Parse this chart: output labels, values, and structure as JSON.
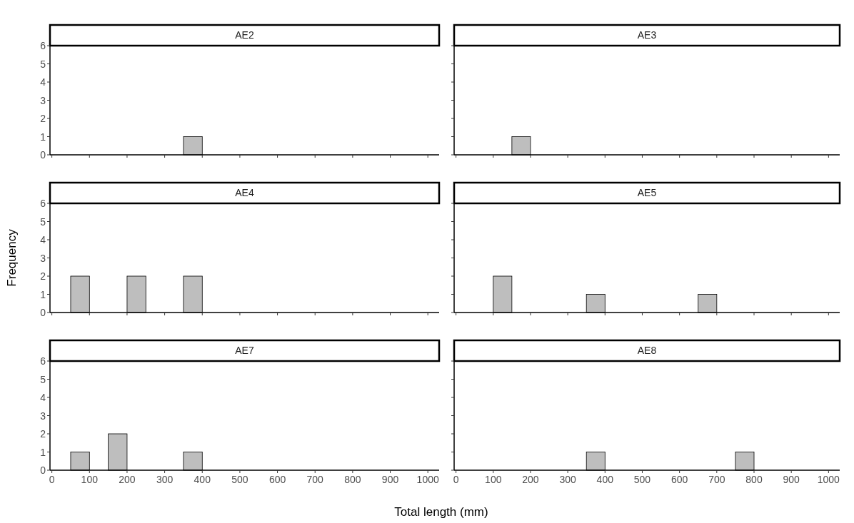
{
  "chart_data": [
    {
      "type": "histogram",
      "title": "AE2",
      "bins": [
        0,
        50,
        100,
        150,
        200,
        250,
        300,
        350,
        400,
        450,
        500,
        550,
        600,
        650,
        700,
        750,
        800,
        850,
        900,
        950,
        1000
      ],
      "values": [
        0,
        0,
        0,
        0,
        0,
        0,
        0,
        1,
        0,
        0,
        0,
        0,
        0,
        0,
        0,
        0,
        0,
        0,
        0,
        0
      ],
      "color": "#bebebe",
      "xlim": [
        -5,
        1030
      ],
      "ylim": [
        0,
        6
      ],
      "xticks": [
        0,
        100,
        200,
        300,
        400,
        500,
        600,
        700,
        800,
        900,
        1000
      ],
      "yticks": [
        0,
        1,
        2,
        3,
        4,
        5,
        6
      ],
      "tick_labels": "y"
    },
    {
      "type": "histogram",
      "title": "AE3",
      "bins": [
        0,
        50,
        100,
        150,
        200,
        250,
        300,
        350,
        400,
        450,
        500,
        550,
        600,
        650,
        700,
        750,
        800,
        850,
        900,
        950,
        1000
      ],
      "values": [
        0,
        0,
        0,
        1,
        0,
        0,
        0,
        0,
        0,
        0,
        0,
        0,
        0,
        0,
        0,
        0,
        0,
        0,
        0,
        0
      ],
      "color": "#bebebe",
      "xlim": [
        -5,
        1030
      ],
      "ylim": [
        0,
        6
      ],
      "xticks": [
        0,
        100,
        200,
        300,
        400,
        500,
        600,
        700,
        800,
        900,
        1000
      ],
      "yticks": [
        0,
        1,
        2,
        3,
        4,
        5,
        6
      ],
      "tick_labels": false
    },
    {
      "type": "histogram",
      "title": "AE4",
      "ylabel": "Frequency",
      "bins": [
        0,
        50,
        100,
        150,
        200,
        250,
        300,
        350,
        400,
        450,
        500,
        550,
        600,
        650,
        700,
        750,
        800,
        850,
        900,
        950,
        1000
      ],
      "values": [
        0,
        2,
        0,
        0,
        2,
        0,
        0,
        2,
        0,
        0,
        0,
        0,
        0,
        0,
        0,
        0,
        0,
        0,
        0,
        0
      ],
      "color": "#bebebe",
      "xlim": [
        -5,
        1030
      ],
      "ylim": [
        0,
        6
      ],
      "xticks": [
        0,
        100,
        200,
        300,
        400,
        500,
        600,
        700,
        800,
        900,
        1000
      ],
      "yticks": [
        0,
        1,
        2,
        3,
        4,
        5,
        6
      ],
      "tick_labels": "y"
    },
    {
      "type": "histogram",
      "title": "AE5",
      "bins": [
        0,
        50,
        100,
        150,
        200,
        250,
        300,
        350,
        400,
        450,
        500,
        550,
        600,
        650,
        700,
        750,
        800,
        850,
        900,
        950,
        1000
      ],
      "values": [
        0,
        0,
        2,
        0,
        0,
        0,
        0,
        1,
        0,
        0,
        0,
        0,
        0,
        1,
        0,
        0,
        0,
        0,
        0,
        0
      ],
      "color": "#bebebe",
      "xlim": [
        -5,
        1030
      ],
      "ylim": [
        0,
        6
      ],
      "xticks": [
        0,
        100,
        200,
        300,
        400,
        500,
        600,
        700,
        800,
        900,
        1000
      ],
      "yticks": [
        0,
        1,
        2,
        3,
        4,
        5,
        6
      ],
      "tick_labels": false
    },
    {
      "type": "histogram",
      "title": "AE7",
      "xlabel": "Total length (mm)",
      "bins": [
        0,
        50,
        100,
        150,
        200,
        250,
        300,
        350,
        400,
        450,
        500,
        550,
        600,
        650,
        700,
        750,
        800,
        850,
        900,
        950,
        1000
      ],
      "values": [
        0,
        1,
        0,
        2,
        0,
        0,
        0,
        1,
        0,
        0,
        0,
        0,
        0,
        0,
        0,
        0,
        0,
        0,
        0,
        0
      ],
      "color": "#bebebe",
      "xlim": [
        -5,
        1030
      ],
      "ylim": [
        0,
        6
      ],
      "xticks": [
        0,
        100,
        200,
        300,
        400,
        500,
        600,
        700,
        800,
        900,
        1000
      ],
      "yticks": [
        0,
        1,
        2,
        3,
        4,
        5,
        6
      ]
    },
    {
      "type": "histogram",
      "title": "AE8",
      "bins": [
        0,
        50,
        100,
        150,
        200,
        250,
        300,
        350,
        400,
        450,
        500,
        550,
        600,
        650,
        700,
        750,
        800,
        850,
        900,
        950,
        1000
      ],
      "values": [
        0,
        0,
        0,
        0,
        0,
        0,
        0,
        1,
        0,
        0,
        0,
        0,
        0,
        0,
        0,
        1,
        0,
        0,
        0,
        0
      ],
      "color": "#bebebe",
      "xlim": [
        -5,
        1030
      ],
      "ylim": [
        0,
        6
      ],
      "xticks": [
        0,
        100,
        200,
        300,
        400,
        500,
        600,
        700,
        800,
        900,
        1000
      ],
      "yticks": [
        0,
        1,
        2,
        3,
        4,
        5,
        6
      ],
      "tick_labels": "x"
    }
  ]
}
